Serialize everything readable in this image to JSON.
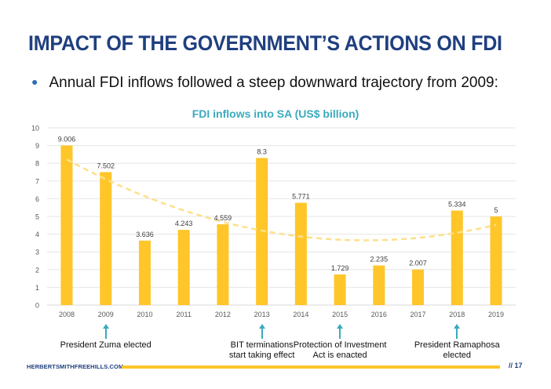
{
  "header": {
    "title": "IMPACT OF THE GOVERNMENT’S ACTIONS ON FDI",
    "bullet": "Annual FDI inflows followed a steep downward trajectory from 2009:"
  },
  "chart_data": {
    "type": "bar",
    "title": "FDI inflows into SA (US$ billion)",
    "xlabel": "",
    "ylabel": "",
    "ylim": [
      0,
      10
    ],
    "yticks": [
      "0",
      "1",
      "2",
      "3",
      "4",
      "5",
      "6",
      "7",
      "8",
      "9",
      "10"
    ],
    "grid": true,
    "categories": [
      "2008",
      "2009",
      "2010",
      "2011",
      "2012",
      "2013",
      "2014",
      "2015",
      "2016",
      "2017",
      "2018",
      "2019"
    ],
    "values": [
      9.006,
      7.502,
      3.636,
      4.243,
      4.559,
      8.3,
      5.771,
      1.729,
      2.235,
      2.007,
      5.334,
      5
    ],
    "data_labels": [
      "9.006",
      "7.502",
      "3.636",
      "4.243",
      "4.559",
      "8.3",
      "5.771",
      "1.729",
      "2.235",
      "2.007",
      "5.334",
      "5"
    ],
    "trendline": {
      "type": "polynomial",
      "order": 2,
      "style": "dashed"
    },
    "colors": {
      "bar": "#ffc629",
      "trend": "#fde08a",
      "grid": "#e6e6e6",
      "title": "#3aaabd",
      "arrow": "#3aaabd"
    }
  },
  "annotations": [
    {
      "year": "2009",
      "lines": [
        "President Zuma elected"
      ]
    },
    {
      "year": "2013",
      "lines": [
        "BIT terminations",
        "start taking effect"
      ]
    },
    {
      "year": "2015",
      "lines": [
        "Protection of Investment",
        "Act is enacted"
      ]
    },
    {
      "year": "2018",
      "lines": [
        "President Ramaphosa",
        "elected"
      ]
    }
  ],
  "footer": {
    "website": "HERBERTSMITHFREEHILLS.COM",
    "page": "// 17"
  }
}
